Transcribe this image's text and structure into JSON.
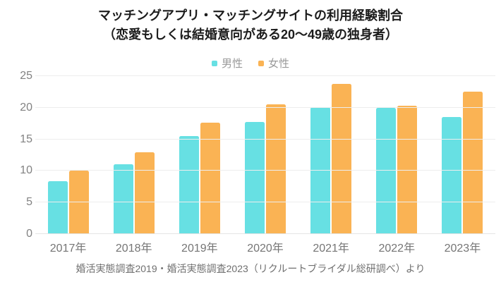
{
  "title": {
    "line1": "マッチングアプリ・マッチングサイトの利用経験割合",
    "line2": "（恋愛もしくは結婚意向がある20〜49歳の独身者）"
  },
  "footer": {
    "text": "婚活実態調査2019・婚活実態調査2023（リクルートブライダル総研調べ）より"
  },
  "colors": {
    "male": "#67E0E3",
    "female": "#FAB354",
    "gridline": "#ededed",
    "axis_text": "#828282",
    "title_text": "#1c1c1c",
    "legend_text": "#999999",
    "source_text": "#6f6f6f"
  },
  "chart_data": {
    "type": "bar",
    "title": "マッチングアプリ・マッチングサイトの利用経験割合（恋愛もしくは結婚意向がある20〜49歳の独身者）",
    "categories": [
      "2017年",
      "2018年",
      "2019年",
      "2020年",
      "2021年",
      "2022年",
      "2023年"
    ],
    "series": [
      {
        "key": "male",
        "name": "男性",
        "color": "#67E0E3",
        "values": [
          8.4,
          11.1,
          15.5,
          17.8,
          20.1,
          20.0,
          18.5
        ]
      },
      {
        "key": "female",
        "name": "女性",
        "color": "#FAB354",
        "values": [
          10.1,
          13.0,
          17.6,
          20.5,
          23.8,
          20.3,
          22.6
        ]
      }
    ],
    "xlabel": "",
    "ylabel": "",
    "ylim": [
      0,
      25
    ],
    "yticks": [
      0,
      5,
      10,
      15,
      20,
      25
    ],
    "grid": true,
    "legend_position": "top",
    "source": "婚活実態調査2019・婚活実態調査2023（リクルートブライダル総研調べ）より"
  }
}
